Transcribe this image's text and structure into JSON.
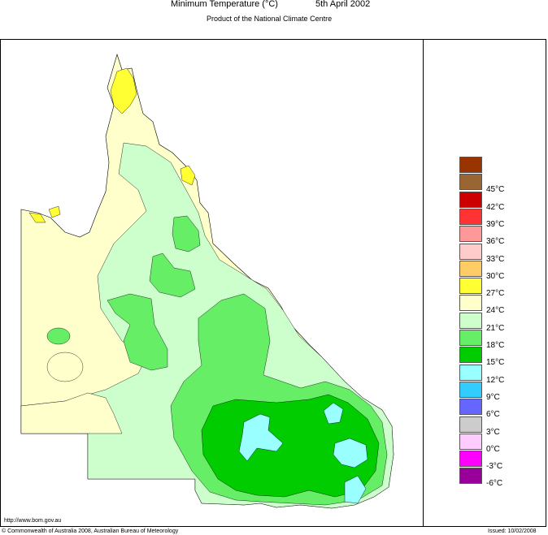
{
  "header": {
    "title": "Minimum Temperature (°C)",
    "date": "5th April 2002",
    "subtitle": "Product of the National Climate Centre"
  },
  "legend": {
    "items": [
      {
        "label": "",
        "color": "#993300"
      },
      {
        "label": "45°C",
        "color": "#996633"
      },
      {
        "label": "42°C",
        "color": "#cc0000"
      },
      {
        "label": "39°C",
        "color": "#ff3333"
      },
      {
        "label": "36°C",
        "color": "#ff9999"
      },
      {
        "label": "33°C",
        "color": "#ffcccc"
      },
      {
        "label": "30°C",
        "color": "#ffcc66"
      },
      {
        "label": "27°C",
        "color": "#ffff33"
      },
      {
        "label": "24°C",
        "color": "#ffffcc"
      },
      {
        "label": "21°C",
        "color": "#ccffcc"
      },
      {
        "label": "18°C",
        "color": "#66ee66"
      },
      {
        "label": "15°C",
        "color": "#00cc00"
      },
      {
        "label": "12°C",
        "color": "#99ffff"
      },
      {
        "label": "9°C",
        "color": "#33ccff"
      },
      {
        "label": "6°C",
        "color": "#6666ff"
      },
      {
        "label": "3°C",
        "color": "#cccccc"
      },
      {
        "label": "0°C",
        "color": "#ffccff"
      },
      {
        "label": "-3°C",
        "color": "#ff00ff"
      },
      {
        "label": "-6°C",
        "color": "#990099"
      }
    ]
  },
  "footer": {
    "url": "http://www.bom.gov.au",
    "copyright": "© Commonwealth of Australia 2008, Australian Bureau of Meteorology",
    "issued": "Issued: 10/02/2008"
  }
}
